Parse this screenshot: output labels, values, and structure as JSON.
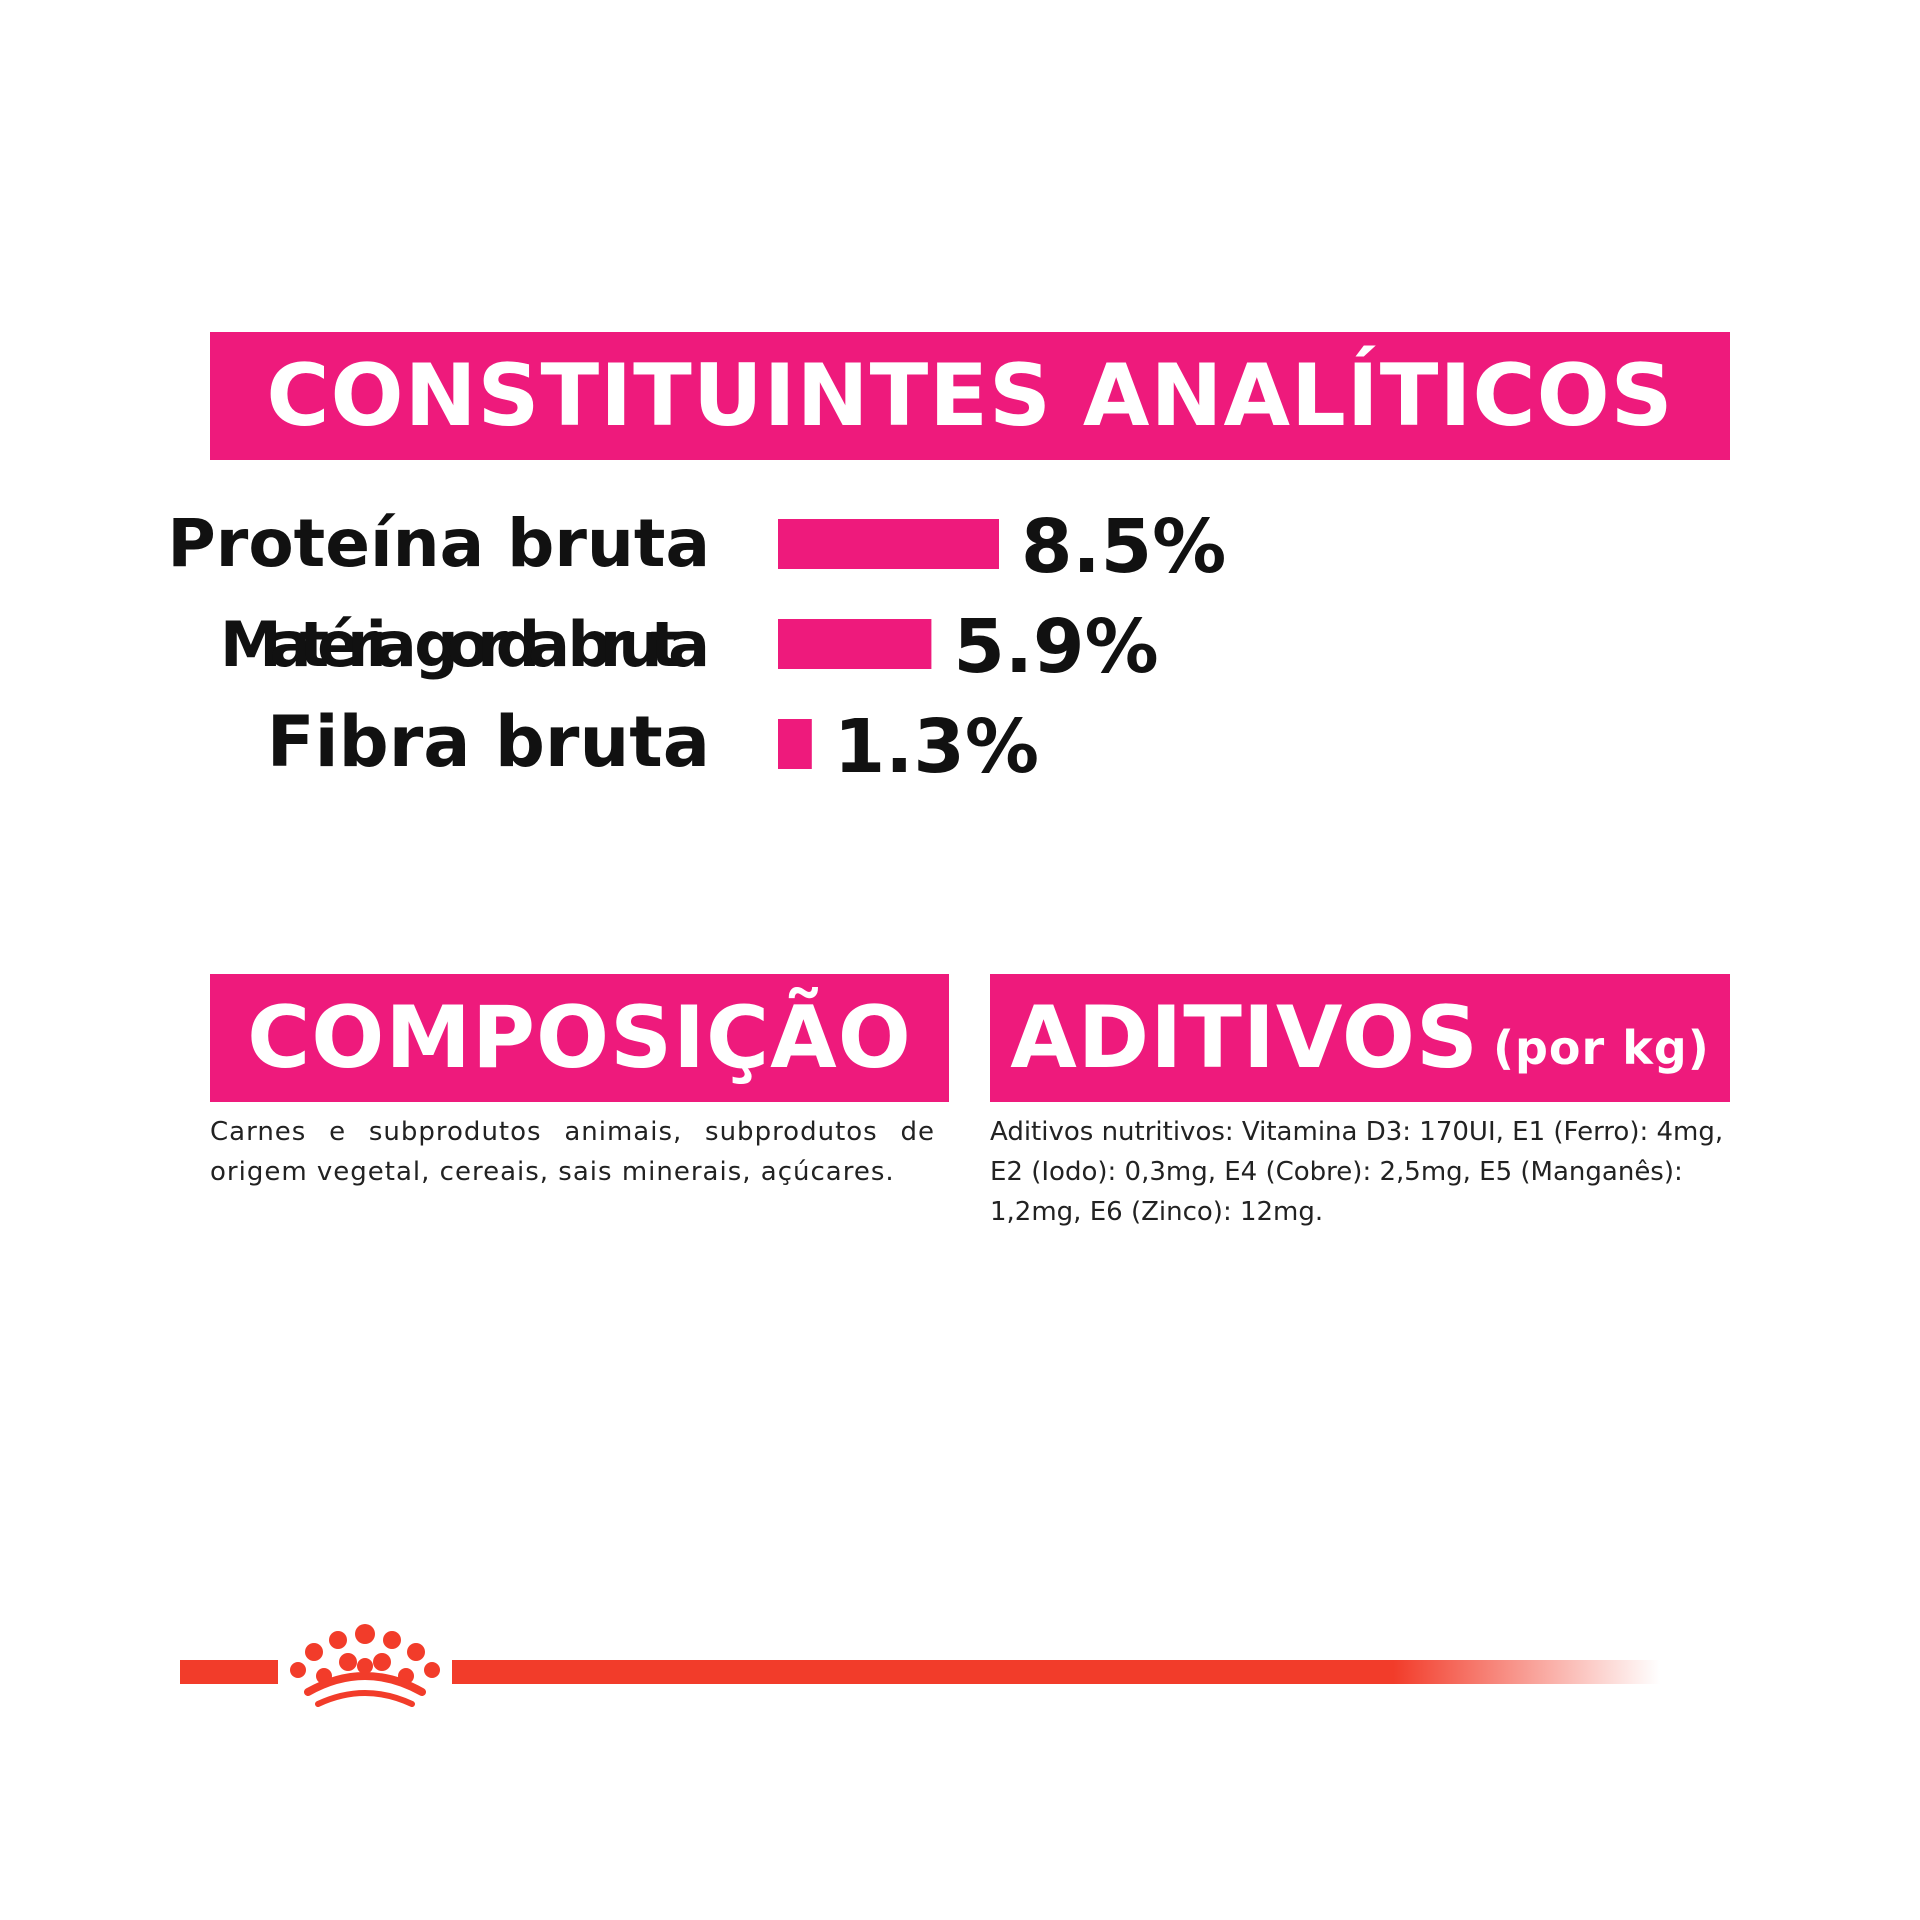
{
  "sections": {
    "analytic_title": "CONSTITUINTES ANALÍTICOS",
    "composition_title": "COMPOSIÇÃO",
    "additives_title": "ADITIVOS",
    "additives_suffix": "(por kg)"
  },
  "composition_text": "Carnes e subprodutos animais, subprodutos de origem vegetal, cereais, sais minerais, açúcares.",
  "additives_text": "Aditivos nutritivos: Vitamina D3: 170UI, E1 (Ferro): 4mg, E2 (Iodo): 0,3mg, E4 (Cobre): 2,5mg, E5 (Manganês): 1,2mg, E6 (Zinco): 12mg.",
  "colors": {
    "accent": "#ee1a7c",
    "brand_red": "#f23c2a",
    "text": "#111111"
  },
  "brand": {
    "logo_icon": "crown-icon"
  },
  "chart_data": {
    "type": "bar",
    "orientation": "horizontal",
    "categories": [
      "Proteína bruta",
      "Matéria gorda bruta",
      "Fibra bruta"
    ],
    "values": [
      8.5,
      5.9,
      1.3
    ],
    "value_labels": [
      "8.5%",
      "5.9%",
      "1.3%"
    ],
    "unit": "%",
    "grid": false,
    "bar_color": "#ee1a7c"
  }
}
